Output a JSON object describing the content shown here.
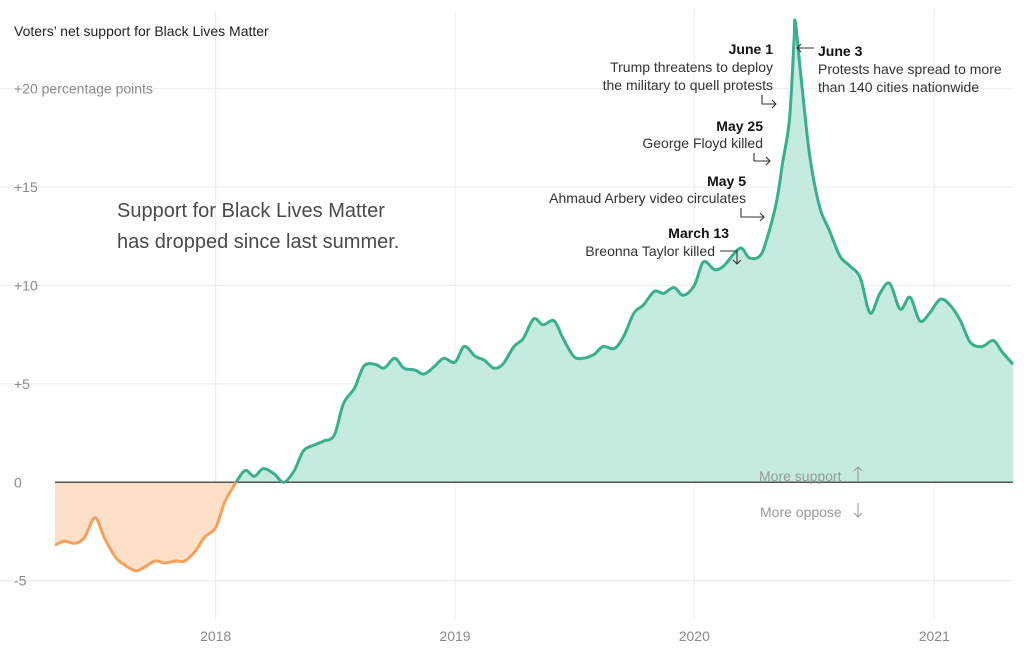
{
  "chart_data": {
    "type": "area",
    "title": "Voters’ net support for Black Lives Matter",
    "subtitle": "",
    "xlabel": "",
    "ylabel": "",
    "x_range": [
      "2017-05",
      "2021-05"
    ],
    "ylim": [
      -7,
      24
    ],
    "y_ticks": [
      {
        "value": 20,
        "label": "+20 percentage points"
      },
      {
        "value": 15,
        "label": "+15"
      },
      {
        "value": 10,
        "label": "+10"
      },
      {
        "value": 5,
        "label": "+5"
      },
      {
        "value": 0,
        "label": "0"
      },
      {
        "value": -5,
        "label": "-5"
      }
    ],
    "x_ticks": [
      "2018",
      "2019",
      "2020",
      "2021"
    ],
    "grid": true,
    "negative_color": "#f5a15a",
    "negative_fill": "#fde0c7",
    "positive_color": "#3aaf8f",
    "positive_fill": "#c5eae0",
    "series": [
      {
        "values": [
          [
            "2017-05-01",
            -3.2
          ],
          [
            "2017-05-15",
            -3.0
          ],
          [
            "2017-06-01",
            -3.1
          ],
          [
            "2017-06-15",
            -2.8
          ],
          [
            "2017-07-01",
            -1.8
          ],
          [
            "2017-07-15",
            -2.8
          ],
          [
            "2017-08-01",
            -3.8
          ],
          [
            "2017-08-15",
            -4.2
          ],
          [
            "2017-09-01",
            -4.5
          ],
          [
            "2017-09-15",
            -4.3
          ],
          [
            "2017-10-01",
            -4.0
          ],
          [
            "2017-10-15",
            -4.1
          ],
          [
            "2017-11-01",
            -4.0
          ],
          [
            "2017-11-15",
            -4.0
          ],
          [
            "2017-12-01",
            -3.5
          ],
          [
            "2017-12-15",
            -2.8
          ],
          [
            "2018-01-01",
            -2.3
          ],
          [
            "2018-01-15",
            -1.0
          ],
          [
            "2018-02-01",
            0.0
          ],
          [
            "2018-02-15",
            0.6
          ],
          [
            "2018-03-01",
            0.3
          ],
          [
            "2018-03-15",
            0.7
          ],
          [
            "2018-04-01",
            0.4
          ],
          [
            "2018-04-15",
            0.0
          ],
          [
            "2018-05-01",
            0.6
          ],
          [
            "2018-05-15",
            1.6
          ],
          [
            "2018-06-01",
            1.9
          ],
          [
            "2018-06-15",
            2.1
          ],
          [
            "2018-07-01",
            2.4
          ],
          [
            "2018-07-15",
            4.0
          ],
          [
            "2018-08-01",
            4.8
          ],
          [
            "2018-08-15",
            5.9
          ],
          [
            "2018-09-01",
            6.0
          ],
          [
            "2018-09-15",
            5.8
          ],
          [
            "2018-10-01",
            6.3
          ],
          [
            "2018-10-15",
            5.8
          ],
          [
            "2018-11-01",
            5.7
          ],
          [
            "2018-11-15",
            5.5
          ],
          [
            "2018-12-01",
            5.9
          ],
          [
            "2018-12-15",
            6.3
          ],
          [
            "2019-01-01",
            6.1
          ],
          [
            "2019-01-15",
            6.9
          ],
          [
            "2019-02-01",
            6.4
          ],
          [
            "2019-02-15",
            6.2
          ],
          [
            "2019-03-01",
            5.8
          ],
          [
            "2019-03-15",
            6.0
          ],
          [
            "2019-04-01",
            6.9
          ],
          [
            "2019-04-15",
            7.3
          ],
          [
            "2019-05-01",
            8.3
          ],
          [
            "2019-05-15",
            8.0
          ],
          [
            "2019-06-01",
            8.2
          ],
          [
            "2019-06-15",
            7.3
          ],
          [
            "2019-07-01",
            6.4
          ],
          [
            "2019-07-15",
            6.3
          ],
          [
            "2019-08-01",
            6.5
          ],
          [
            "2019-08-15",
            6.9
          ],
          [
            "2019-09-01",
            6.8
          ],
          [
            "2019-09-15",
            7.4
          ],
          [
            "2019-10-01",
            8.6
          ],
          [
            "2019-10-15",
            9.0
          ],
          [
            "2019-11-01",
            9.7
          ],
          [
            "2019-11-15",
            9.6
          ],
          [
            "2019-12-01",
            9.9
          ],
          [
            "2019-12-15",
            9.5
          ],
          [
            "2020-01-01",
            10.0
          ],
          [
            "2020-01-15",
            11.2
          ],
          [
            "2020-02-01",
            10.8
          ],
          [
            "2020-02-15",
            11.0
          ],
          [
            "2020-03-01",
            11.6
          ],
          [
            "2020-03-13",
            11.9
          ],
          [
            "2020-03-25",
            11.4
          ],
          [
            "2020-04-10",
            11.5
          ],
          [
            "2020-04-20",
            12.3
          ],
          [
            "2020-05-05",
            14.2
          ],
          [
            "2020-05-15",
            16.3
          ],
          [
            "2020-05-25",
            18.4
          ],
          [
            "2020-06-01",
            22.4
          ],
          [
            "2020-06-03",
            23.4
          ],
          [
            "2020-06-12",
            20.5
          ],
          [
            "2020-06-25",
            16.6
          ],
          [
            "2020-07-10",
            14.0
          ],
          [
            "2020-07-25",
            12.8
          ],
          [
            "2020-08-10",
            11.5
          ],
          [
            "2020-08-25",
            11.0
          ],
          [
            "2020-09-10",
            10.4
          ],
          [
            "2020-09-25",
            8.6
          ],
          [
            "2020-10-10",
            9.6
          ],
          [
            "2020-10-25",
            10.1
          ],
          [
            "2020-11-10",
            8.8
          ],
          [
            "2020-11-25",
            9.4
          ],
          [
            "2020-12-10",
            8.2
          ],
          [
            "2020-12-25",
            8.6
          ],
          [
            "2021-01-10",
            9.3
          ],
          [
            "2021-01-25",
            9.0
          ],
          [
            "2021-02-10",
            8.2
          ],
          [
            "2021-02-25",
            7.1
          ],
          [
            "2021-03-15",
            6.9
          ],
          [
            "2021-04-01",
            7.2
          ],
          [
            "2021-04-15",
            6.6
          ],
          [
            "2021-05-01",
            6.0
          ]
        ]
      }
    ],
    "callout": "Support for Black Lives Matter has dropped since last summer.",
    "callout_lines": [
      "Support for Black Lives Matter",
      "has dropped since last summer."
    ],
    "direction_labels": {
      "up": "More support",
      "down": "More oppose"
    },
    "annotations": [
      {
        "date": "2020-06-01",
        "title": "June 1",
        "lines": [
          "Trump threatens to deploy",
          "the military to quell protests"
        ]
      },
      {
        "date": "2020-06-03",
        "title": "June 3",
        "lines": [
          "Protests have spread to more",
          "than 140 cities nationwide"
        ]
      },
      {
        "date": "2020-05-25",
        "title": "May 25",
        "lines": [
          "George Floyd killed"
        ]
      },
      {
        "date": "2020-05-05",
        "title": "May 5",
        "lines": [
          "Ahmaud Arbery video circulates"
        ]
      },
      {
        "date": "2020-03-13",
        "title": "March 13",
        "lines": [
          "Breonna Taylor killed"
        ]
      }
    ]
  }
}
